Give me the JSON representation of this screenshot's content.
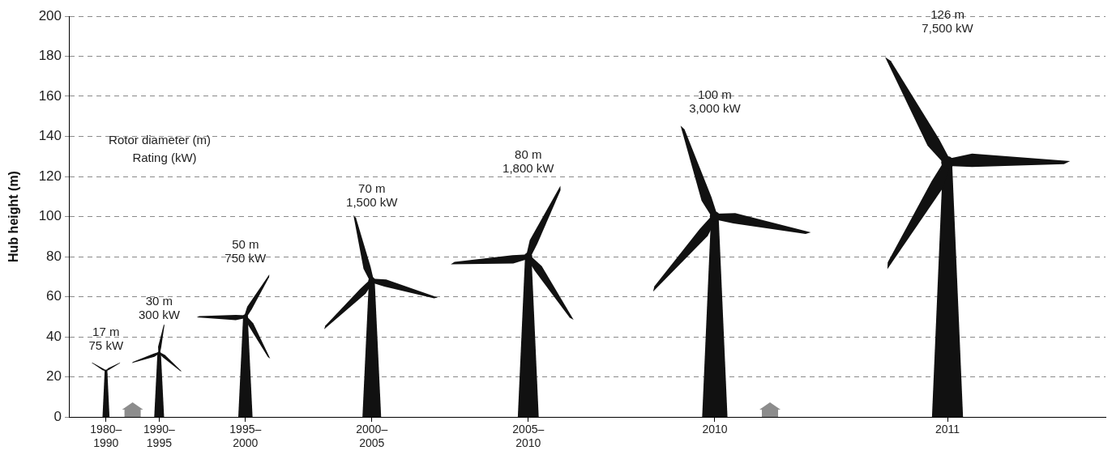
{
  "chart_data": {
    "type": "bubble",
    "y_label": "Hub height (m)",
    "categories": [
      "1980–1990",
      "1990–1995",
      "1995–2000",
      "2000–2005",
      "2005–2010",
      "2010",
      "2011"
    ],
    "values": [
      23,
      32,
      50,
      68,
      80,
      100,
      127
    ],
    "rotor_diameter": {
      "name": "Rotor diameter (m)",
      "values": [
        17,
        30,
        50,
        70,
        80,
        100,
        126
      ],
      "value_labels": [
        "17 m",
        "30 m",
        "50 m",
        "70 m",
        "80 m",
        "100 m",
        "126 m"
      ]
    },
    "rating": {
      "name": "Rating (kW)",
      "values": [
        75,
        300,
        750,
        1500,
        1800,
        3000,
        7500
      ],
      "value_labels": [
        "75 kW",
        "300 kW",
        "750 kW",
        "1,500 kW",
        "1,800 kW",
        "3,000 kW",
        "7,500 kW"
      ]
    },
    "color": "#d3d3d3",
    "ylim": [
      0,
      200
    ],
    "yticks": [
      0,
      20,
      40,
      60,
      80,
      100,
      120,
      140,
      160,
      180,
      200
    ],
    "grid": true,
    "data_labels": true
  }
}
